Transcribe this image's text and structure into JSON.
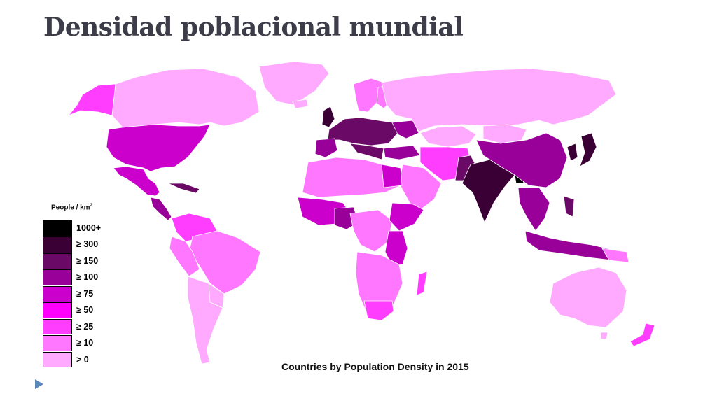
{
  "slide": {
    "title": "Densidad poblacional mundial",
    "caption": "Countries by Population Density in 2015"
  },
  "legend": {
    "title": "People / km",
    "title_superscript": "2",
    "items": [
      {
        "label": "1000+",
        "color": "#000000"
      },
      {
        "label": "≥ 300",
        "color": "#3a0035"
      },
      {
        "label": "≥ 150",
        "color": "#6a0a66"
      },
      {
        "label": "≥ 100",
        "color": "#990099"
      },
      {
        "label": "≥ 75",
        "color": "#cc00cc"
      },
      {
        "label": "≥ 50",
        "color": "#ff00ff"
      },
      {
        "label": "≥ 25",
        "color": "#ff3dff"
      },
      {
        "label": "≥ 10",
        "color": "#ff77ff"
      },
      {
        "label": "> 0",
        "color": "#ffaaff"
      }
    ]
  }
}
